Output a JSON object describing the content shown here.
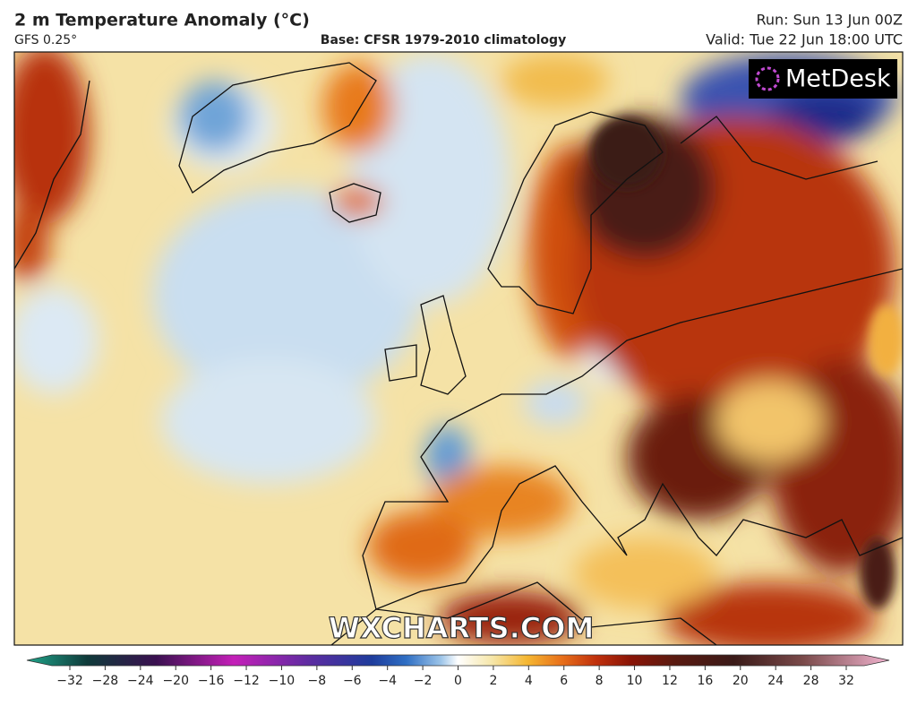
{
  "header": {
    "title": "2 m Temperature Anomaly (°C)",
    "model": "GFS 0.25°",
    "base": "Base: CFSR 1979-2010 climatology",
    "run": "Run: Sun 13 Jun 00Z",
    "valid": "Valid: Tue 22 Jun 18:00 UTC"
  },
  "map": {
    "logo": "MetDesk",
    "watermark": "WXCHARTS.COM"
  },
  "colorbar": {
    "ticks": [
      "−32",
      "−28",
      "−24",
      "−20",
      "−16",
      "−12",
      "−10",
      "−8",
      "−6",
      "−4",
      "−2",
      "0",
      "2",
      "4",
      "6",
      "8",
      "10",
      "12",
      "16",
      "20",
      "24",
      "28",
      "32"
    ]
  }
}
